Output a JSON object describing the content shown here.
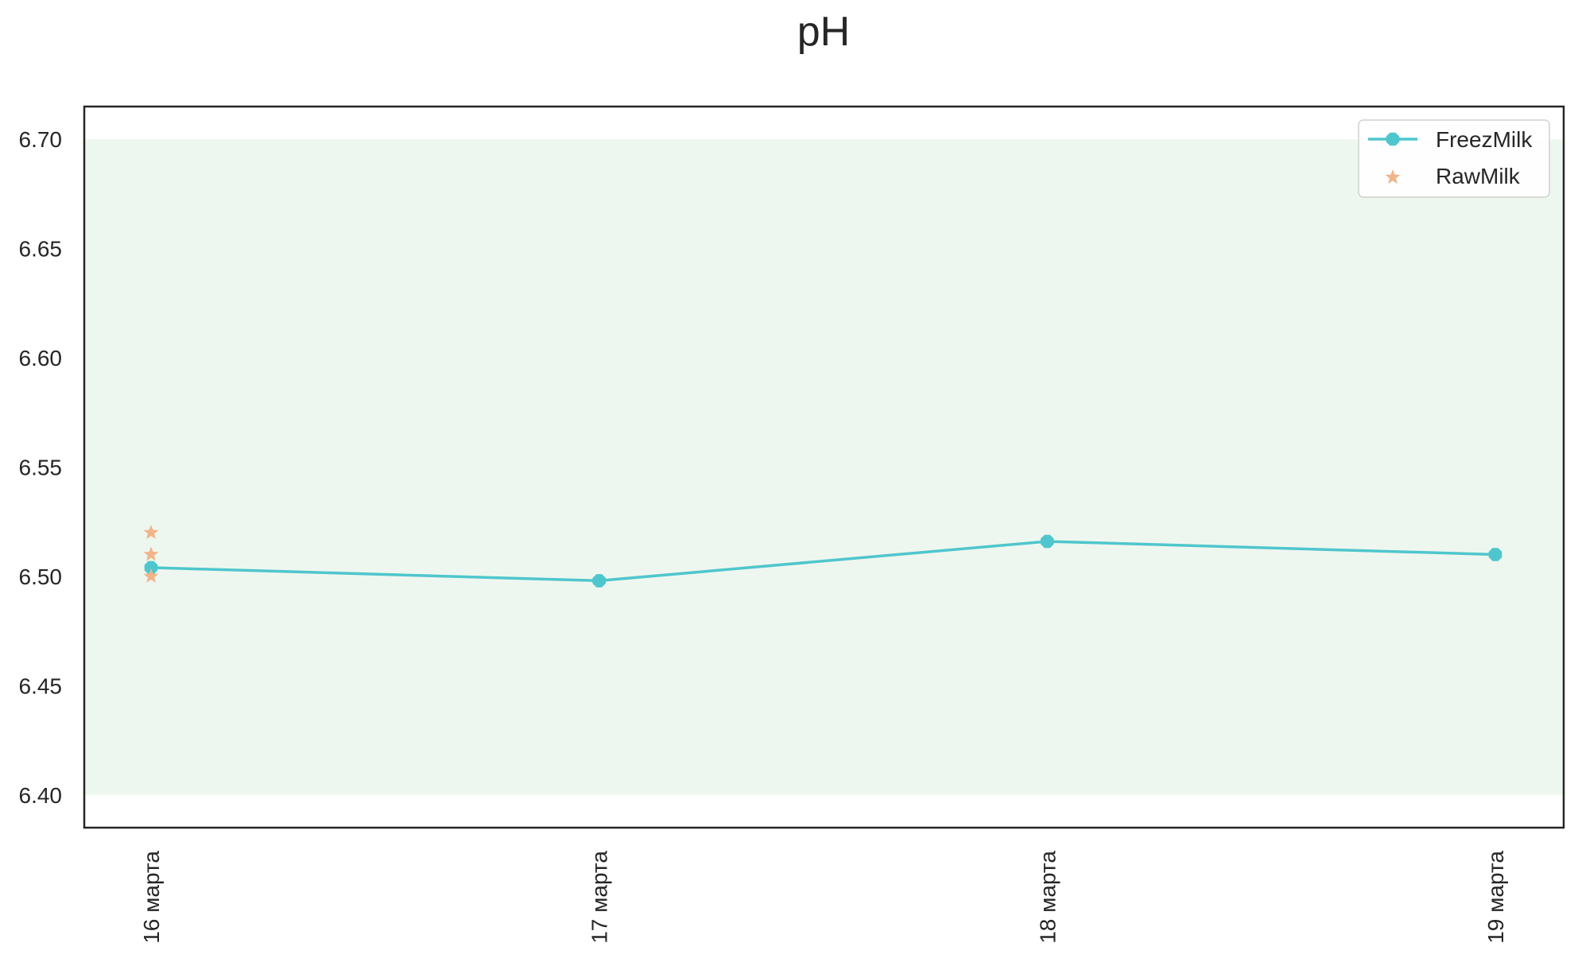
{
  "chart_data": {
    "type": "line",
    "title": "pH",
    "xlabel": "",
    "ylabel": "",
    "categories": [
      "16 марта",
      "17 марта",
      "18 марта",
      "19 марта"
    ],
    "ylim": [
      6.385,
      6.715
    ],
    "yticks": [
      "6.40",
      "6.45",
      "6.50",
      "6.55",
      "6.60",
      "6.65",
      "6.70"
    ],
    "yticks_values": [
      6.4,
      6.45,
      6.5,
      6.55,
      6.6,
      6.65,
      6.7
    ],
    "band": {
      "from": 6.4,
      "to": 6.7,
      "color": "#eef7ef"
    },
    "grid": false,
    "legend_position": "top-right",
    "series": [
      {
        "name": "FreezMilk",
        "kind": "line-marker",
        "color": "#4fc6cd",
        "x": [
          0,
          1,
          2,
          3
        ],
        "values": [
          6.504,
          6.498,
          6.516,
          6.51
        ]
      },
      {
        "name": "RawMilk",
        "kind": "star-scatter",
        "color": "#f2b489",
        "x": [
          0,
          0,
          0
        ],
        "values": [
          6.52,
          6.51,
          6.5
        ]
      }
    ]
  }
}
